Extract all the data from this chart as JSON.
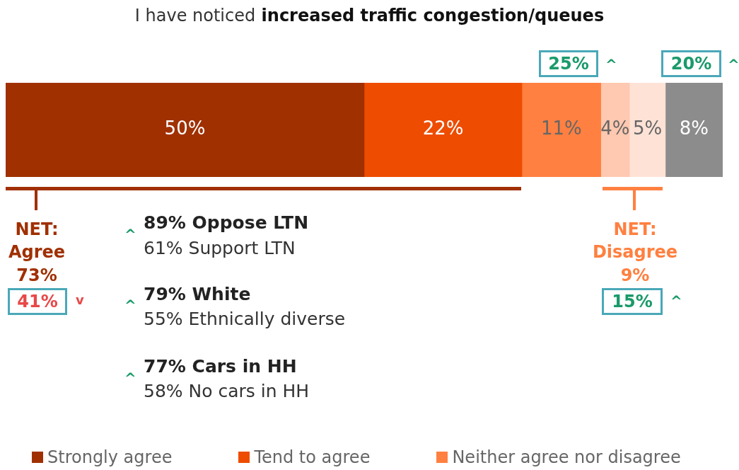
{
  "chart_data": {
    "type": "bar",
    "title": "I have noticed increased traffic congestion/queues",
    "orientation": "horizontal",
    "stacked": true,
    "categories": [
      null
    ],
    "xlim": [
      0,
      100
    ],
    "tick_labels": false,
    "legend": "bottom",
    "series": [
      {
        "name": "Strongly agree",
        "color": "#a03000",
        "values": [
          50
        ],
        "value_labels": [
          "50%"
        ]
      },
      {
        "name": "Tend to agree",
        "color": "#ee4c00",
        "values": [
          22
        ],
        "value_labels": [
          "22%"
        ]
      },
      {
        "name": "Neither agree nor disagree",
        "color": "#ff8040",
        "values": [
          11
        ],
        "value_labels": [
          "11%"
        ]
      },
      {
        "color": "#ffc8b0",
        "values": [
          4
        ],
        "value_labels": [
          "4%"
        ]
      },
      {
        "color": "#ffe2d6",
        "values": [
          5
        ],
        "value_labels": [
          "5%"
        ]
      },
      {
        "color": "#8c8c8c",
        "values": [
          8
        ],
        "value_labels": [
          "8%"
        ]
      }
    ],
    "annotations": [
      "25%",
      "^",
      "20%",
      "^",
      "NET: Agree 73%",
      "41%",
      "v",
      "^",
      "89% Oppose LTN",
      "61% Support LTN",
      "^",
      "79% White",
      "55% Ethnically diverse",
      "^",
      "77% Cars in HH",
      "58% No cars in HH",
      "NET: Disagree 9%",
      "15%",
      "^"
    ]
  }
}
